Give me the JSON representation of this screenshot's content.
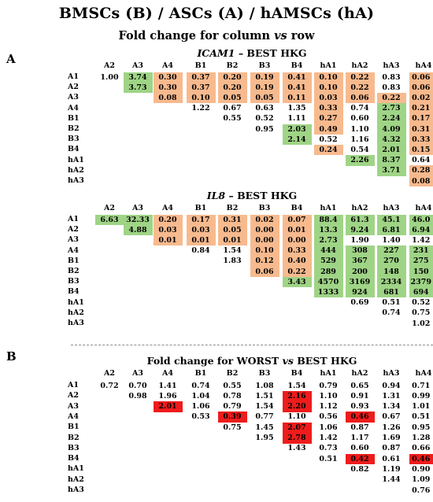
{
  "title": "BMSCs (B) / ASCs (A) / hAMSCs (hA)",
  "subtitle": "Fold change for column vs row",
  "colors": {
    "orange": "#f7ba8e",
    "green": "#9fd486",
    "red": "#ee1c1c"
  },
  "panel_a_label": "A",
  "panel_b_label": "B",
  "columns": [
    "A2",
    "A3",
    "A4",
    "B1",
    "B2",
    "B3",
    "B4",
    "hA1",
    "hA2",
    "hA3",
    "hA4"
  ],
  "rows": [
    "A1",
    "A2",
    "A3",
    "A4",
    "B1",
    "B2",
    "B3",
    "B4",
    "hA1",
    "hA2",
    "hA3"
  ],
  "chart_data": [
    {
      "type": "table",
      "title_gene": "ICAM1",
      "title_rest": " – BEST HKG",
      "columns": [
        "A2",
        "A3",
        "A4",
        "B1",
        "B2",
        "B3",
        "B4",
        "hA1",
        "hA2",
        "hA3",
        "hA4"
      ],
      "rows": [
        "A1",
        "A2",
        "A3",
        "A4",
        "B1",
        "B2",
        "B3",
        "B4",
        "hA1",
        "hA2",
        "hA3"
      ],
      "values": [
        [
          "1.00",
          "3.74",
          "0.30",
          "0.37",
          "0.20",
          "0.19",
          "0.41",
          "0.10",
          "0.22",
          "0.83",
          "0.06"
        ],
        [
          null,
          "3.73",
          "0.30",
          "0.37",
          "0.20",
          "0.19",
          "0.41",
          "0.10",
          "0.22",
          "0.83",
          "0.06"
        ],
        [
          null,
          null,
          "0.08",
          "0.10",
          "0.05",
          "0.05",
          "0.11",
          "0.03",
          "0.06",
          "0.22",
          "0.02"
        ],
        [
          null,
          null,
          null,
          "1.22",
          "0.67",
          "0.63",
          "1.35",
          "0.33",
          "0.74",
          "2.73",
          "0.21"
        ],
        [
          null,
          null,
          null,
          null,
          "0.55",
          "0.52",
          "1.11",
          "0.27",
          "0.60",
          "2.24",
          "0.17"
        ],
        [
          null,
          null,
          null,
          null,
          null,
          "0.95",
          "2.03",
          "0.49",
          "1.10",
          "4.09",
          "0.31"
        ],
        [
          null,
          null,
          null,
          null,
          null,
          null,
          "2.14",
          "0.52",
          "1.16",
          "4.32",
          "0.33"
        ],
        [
          null,
          null,
          null,
          null,
          null,
          null,
          null,
          "0.24",
          "0.54",
          "2.01",
          "0.15"
        ],
        [
          null,
          null,
          null,
          null,
          null,
          null,
          null,
          null,
          "2.26",
          "8.37",
          "0.64"
        ],
        [
          null,
          null,
          null,
          null,
          null,
          null,
          null,
          null,
          null,
          "3.71",
          "0.28"
        ],
        [
          null,
          null,
          null,
          null,
          null,
          null,
          null,
          null,
          null,
          null,
          "0.08"
        ]
      ],
      "highlight": [
        [
          "",
          "g",
          "o",
          "o",
          "o",
          "o",
          "o",
          "o",
          "o",
          "",
          "o"
        ],
        [
          "",
          "g",
          "o",
          "o",
          "o",
          "o",
          "o",
          "o",
          "o",
          "",
          "o"
        ],
        [
          "",
          "",
          "o",
          "o",
          "o",
          "o",
          "o",
          "o",
          "o",
          "o",
          "o"
        ],
        [
          "",
          "",
          "",
          "",
          "",
          "",
          "",
          "o",
          "",
          "g",
          "o"
        ],
        [
          "",
          "",
          "",
          "",
          "",
          "",
          "",
          "o",
          "",
          "g",
          "o"
        ],
        [
          "",
          "",
          "",
          "",
          "",
          "",
          "g",
          "o",
          "",
          "g",
          "o"
        ],
        [
          "",
          "",
          "",
          "",
          "",
          "",
          "g",
          "",
          "",
          "g",
          "o"
        ],
        [
          "",
          "",
          "",
          "",
          "",
          "",
          "",
          "o",
          "",
          "g",
          "o"
        ],
        [
          "",
          "",
          "",
          "",
          "",
          "",
          "",
          "",
          "g",
          "g",
          ""
        ],
        [
          "",
          "",
          "",
          "",
          "",
          "",
          "",
          "",
          "",
          "g",
          "o"
        ],
        [
          "",
          "",
          "",
          "",
          "",
          "",
          "",
          "",
          "",
          "",
          "o"
        ]
      ]
    },
    {
      "type": "table",
      "title_gene": "IL8",
      "title_rest": " – BEST HKG",
      "columns": [
        "A2",
        "A3",
        "A4",
        "B1",
        "B2",
        "B3",
        "B4",
        "hA1",
        "hA2",
        "hA3",
        "hA4"
      ],
      "rows": [
        "A1",
        "A2",
        "A3",
        "A4",
        "B1",
        "B2",
        "B3",
        "B4",
        "hA1",
        "hA2",
        "hA3"
      ],
      "values": [
        [
          "6.63",
          "32.33",
          "0.20",
          "0.17",
          "0.31",
          "0.02",
          "0.07",
          "88.4",
          "61.3",
          "45.1",
          "46.0"
        ],
        [
          null,
          "4.88",
          "0.03",
          "0.03",
          "0.05",
          "0.00",
          "0.01",
          "13.3",
          "9.24",
          "6.81",
          "6.94"
        ],
        [
          null,
          null,
          "0.01",
          "0.01",
          "0.01",
          "0.00",
          "0.00",
          "2.73",
          "1.90",
          "1.40",
          "1.42"
        ],
        [
          null,
          null,
          null,
          "0.84",
          "1.54",
          "0.10",
          "0.33",
          "444",
          "308",
          "227",
          "231"
        ],
        [
          null,
          null,
          null,
          null,
          "1.83",
          "0.12",
          "0.40",
          "529",
          "367",
          "270",
          "275"
        ],
        [
          null,
          null,
          null,
          null,
          null,
          "0.06",
          "0.22",
          "289",
          "200",
          "148",
          "150"
        ],
        [
          null,
          null,
          null,
          null,
          null,
          null,
          "3.43",
          "4570",
          "3169",
          "2334",
          "2379"
        ],
        [
          null,
          null,
          null,
          null,
          null,
          null,
          null,
          "1333",
          "924",
          "681",
          "694"
        ],
        [
          null,
          null,
          null,
          null,
          null,
          null,
          null,
          null,
          "0.69",
          "0.51",
          "0.52"
        ],
        [
          null,
          null,
          null,
          null,
          null,
          null,
          null,
          null,
          null,
          "0.74",
          "0.75"
        ],
        [
          null,
          null,
          null,
          null,
          null,
          null,
          null,
          null,
          null,
          null,
          "1.02"
        ]
      ],
      "highlight": [
        [
          "g",
          "g",
          "o",
          "o",
          "o",
          "o",
          "o",
          "g",
          "g",
          "g",
          "g"
        ],
        [
          "",
          "g",
          "o",
          "o",
          "o",
          "o",
          "o",
          "g",
          "g",
          "g",
          "g"
        ],
        [
          "",
          "",
          "o",
          "o",
          "o",
          "o",
          "o",
          "g",
          "",
          "",
          ""
        ],
        [
          "",
          "",
          "",
          "",
          "",
          "o",
          "o",
          "g",
          "g",
          "g",
          "g"
        ],
        [
          "",
          "",
          "",
          "",
          "",
          "o",
          "o",
          "g",
          "g",
          "g",
          "g"
        ],
        [
          "",
          "",
          "",
          "",
          "",
          "o",
          "o",
          "g",
          "g",
          "g",
          "g"
        ],
        [
          "",
          "",
          "",
          "",
          "",
          "",
          "g",
          "g",
          "g",
          "g",
          "g"
        ],
        [
          "",
          "",
          "",
          "",
          "",
          "",
          "",
          "g",
          "g",
          "g",
          "g"
        ],
        [
          "",
          "",
          "",
          "",
          "",
          "",
          "",
          "",
          "",
          "",
          ""
        ],
        [
          "",
          "",
          "",
          "",
          "",
          "",
          "",
          "",
          "",
          "",
          ""
        ],
        [
          "",
          "",
          "",
          "",
          "",
          "",
          "",
          "",
          "",
          "",
          ""
        ]
      ]
    },
    {
      "type": "table",
      "title": "Fold change for WORST vs BEST HKG",
      "columns": [
        "A2",
        "A3",
        "A4",
        "B1",
        "B2",
        "B3",
        "B4",
        "hA1",
        "hA2",
        "hA3",
        "hA4"
      ],
      "rows": [
        "A1",
        "A2",
        "A3",
        "A4",
        "B1",
        "B2",
        "B3",
        "B4",
        "hA1",
        "hA2",
        "hA3"
      ],
      "values": [
        [
          "0.72",
          "0.70",
          "1.41",
          "0.74",
          "0.55",
          "1.08",
          "1.54",
          "0.79",
          "0.65",
          "0.94",
          "0.71"
        ],
        [
          null,
          "0.98",
          "1.96",
          "1.04",
          "0.78",
          "1.51",
          "2.16",
          "1.10",
          "0.91",
          "1.31",
          "0.99"
        ],
        [
          null,
          null,
          "2.01",
          "1.06",
          "0.79",
          "1.54",
          "2.20",
          "1.12",
          "0.93",
          "1.34",
          "1.01"
        ],
        [
          null,
          null,
          null,
          "0.53",
          "0.39",
          "0.77",
          "1.10",
          "0.56",
          "0.46",
          "0.67",
          "0.51"
        ],
        [
          null,
          null,
          null,
          null,
          "0.75",
          "1.45",
          "2.07",
          "1.06",
          "0.87",
          "1.26",
          "0.95"
        ],
        [
          null,
          null,
          null,
          null,
          null,
          "1.95",
          "2.78",
          "1.42",
          "1.17",
          "1.69",
          "1.28"
        ],
        [
          null,
          null,
          null,
          null,
          null,
          null,
          "1.43",
          "0.73",
          "0.60",
          "0.87",
          "0.66"
        ],
        [
          null,
          null,
          null,
          null,
          null,
          null,
          null,
          "0.51",
          "0.42",
          "0.61",
          "0.46"
        ],
        [
          null,
          null,
          null,
          null,
          null,
          null,
          null,
          null,
          "0.82",
          "1.19",
          "0.90"
        ],
        [
          null,
          null,
          null,
          null,
          null,
          null,
          null,
          null,
          null,
          "1.44",
          "1.09"
        ],
        [
          null,
          null,
          null,
          null,
          null,
          null,
          null,
          null,
          null,
          null,
          "0.76"
        ]
      ],
      "highlight": [
        [
          "",
          "",
          "",
          "",
          "",
          "",
          "",
          "",
          "",
          "",
          ""
        ],
        [
          "",
          "",
          "",
          "",
          "",
          "",
          "r",
          "",
          "",
          "",
          ""
        ],
        [
          "",
          "",
          "r",
          "",
          "",
          "",
          "r",
          "",
          "",
          "",
          ""
        ],
        [
          "",
          "",
          "",
          "",
          "r",
          "",
          "",
          "",
          "r",
          "",
          ""
        ],
        [
          "",
          "",
          "",
          "",
          "",
          "",
          "r",
          "",
          "",
          "",
          ""
        ],
        [
          "",
          "",
          "",
          "",
          "",
          "",
          "r",
          "",
          "",
          "",
          ""
        ],
        [
          "",
          "",
          "",
          "",
          "",
          "",
          "",
          "",
          "",
          "",
          ""
        ],
        [
          "",
          "",
          "",
          "",
          "",
          "",
          "",
          "",
          "r",
          "",
          "r"
        ],
        [
          "",
          "",
          "",
          "",
          "",
          "",
          "",
          "",
          "",
          "",
          ""
        ],
        [
          "",
          "",
          "",
          "",
          "",
          "",
          "",
          "",
          "",
          "",
          ""
        ],
        [
          "",
          "",
          "",
          "",
          "",
          "",
          "",
          "",
          "",
          "",
          ""
        ]
      ]
    }
  ]
}
